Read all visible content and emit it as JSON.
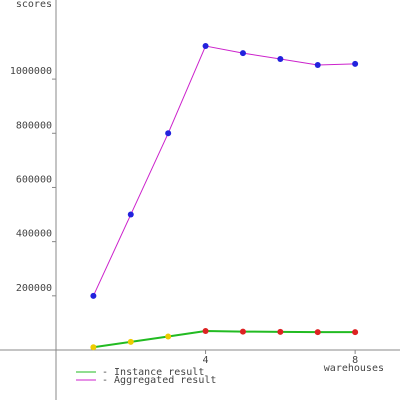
{
  "chart_data": {
    "type": "line",
    "ylabel": "scores",
    "xlabel": "warehouses",
    "xlim": [
      0,
      9.2
    ],
    "ylim": [
      0,
      1292000
    ],
    "xticks": [
      4,
      8
    ],
    "yticks": [
      200000,
      400000,
      600000,
      800000,
      1000000
    ],
    "series": [
      {
        "name": "- Instance result",
        "color": "#22bb22",
        "x": [
          1,
          2,
          3,
          4,
          5,
          6,
          7,
          8
        ],
        "values": [
          10000,
          30000,
          50000,
          70000,
          68000,
          67000,
          66000,
          66000
        ],
        "point_colors": [
          "#eecc00",
          "#eecc00",
          "#eecc00",
          "#dd2222",
          "#dd2222",
          "#dd2222",
          "#dd2222",
          "#dd2222"
        ]
      },
      {
        "name": "- Aggregated result",
        "color": "#cc22cc",
        "x": [
          1,
          2,
          3,
          4,
          5,
          6,
          7,
          8
        ],
        "values": [
          200000,
          500000,
          800000,
          1122000,
          1096000,
          1074000,
          1052000,
          1056000
        ],
        "point_colors": [
          "#2222dd",
          "#2222dd",
          "#2222dd",
          "#2222dd",
          "#2222dd",
          "#2222dd",
          "#2222dd",
          "#2222dd"
        ]
      }
    ]
  }
}
